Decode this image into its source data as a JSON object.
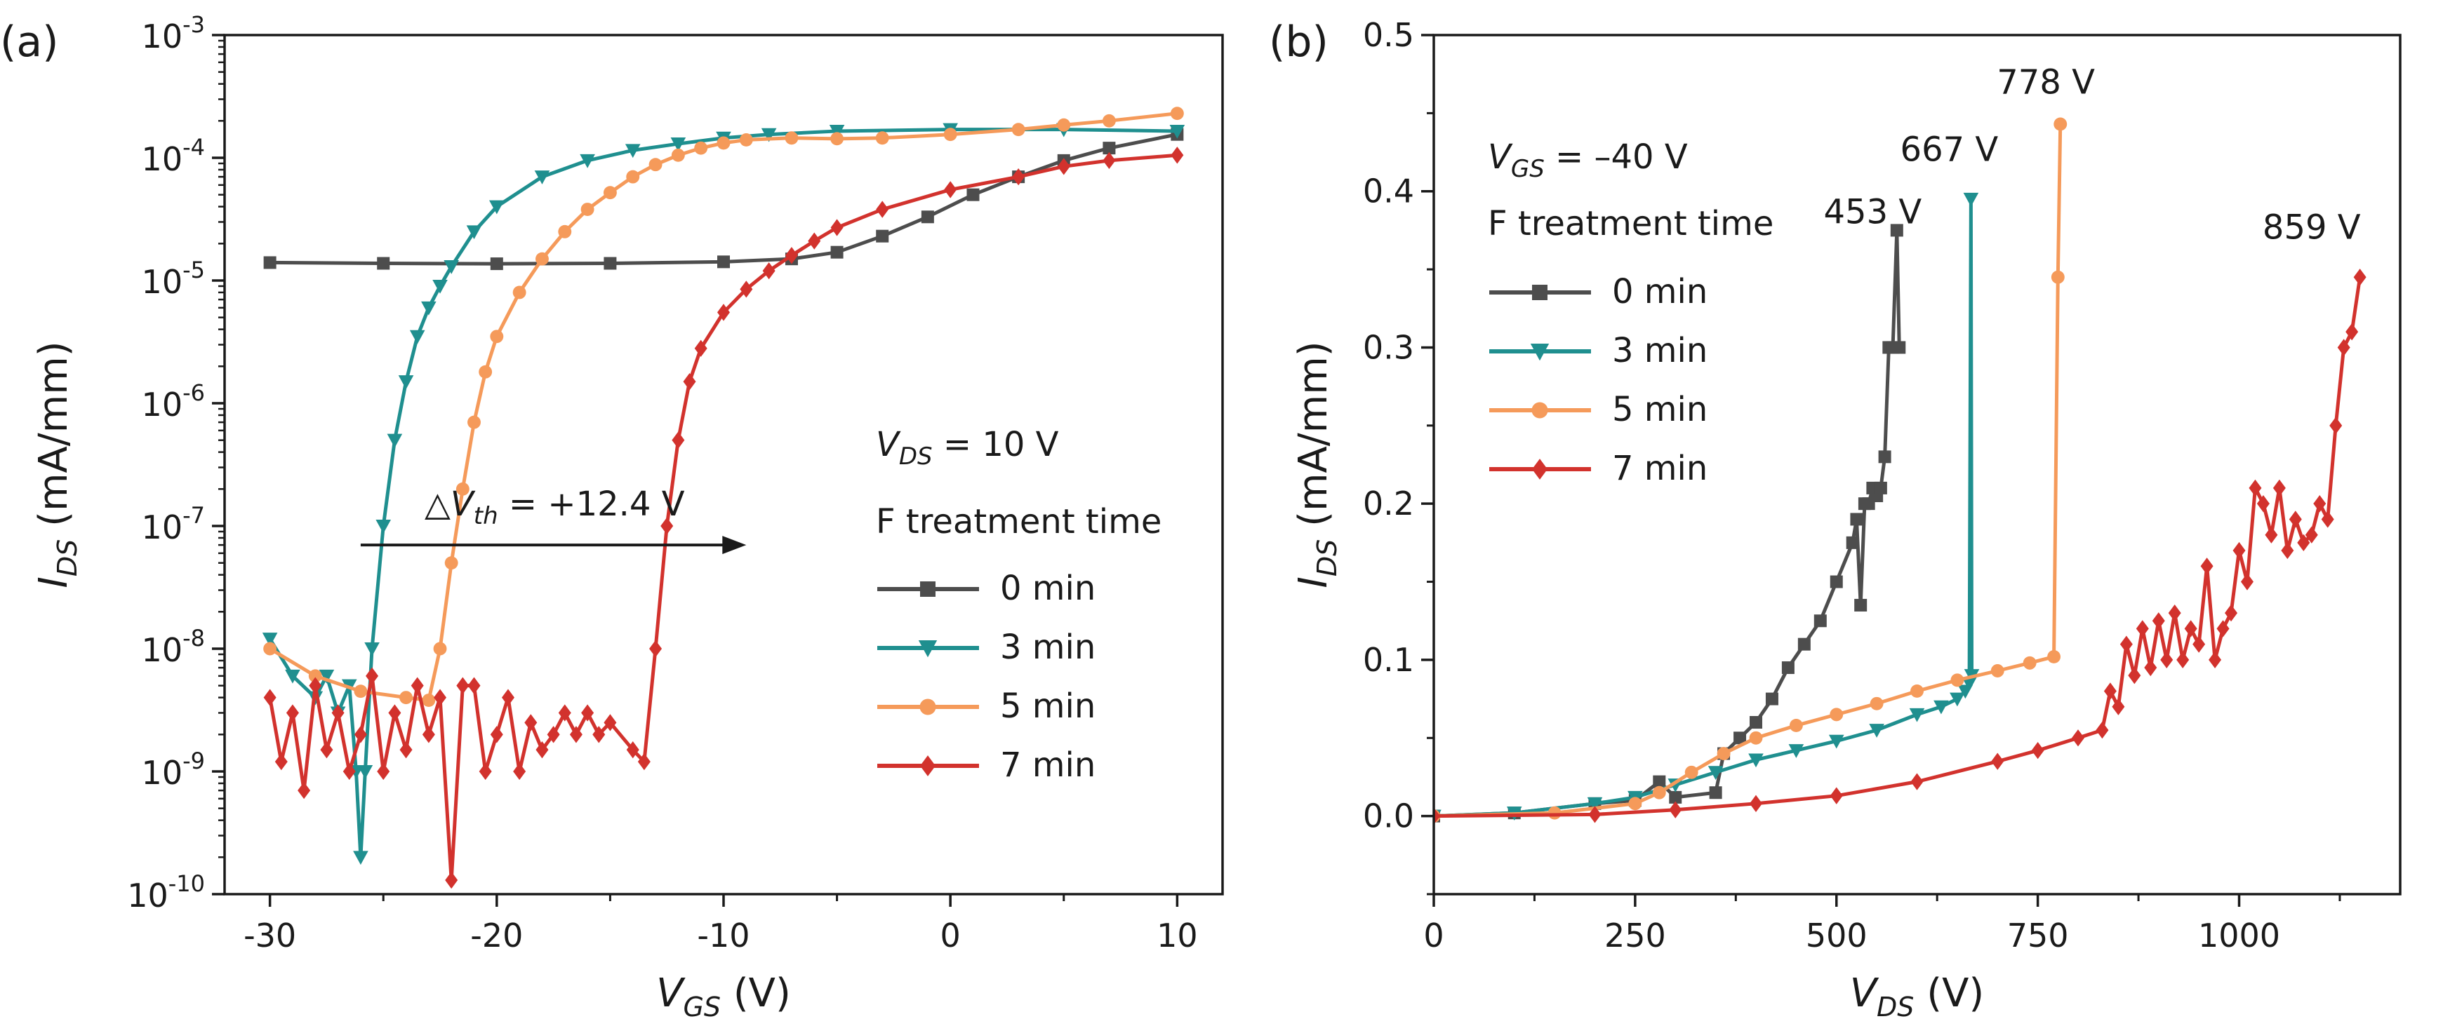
{
  "colors": {
    "0 min": "#4d4d4d",
    "3 min": "#1f8f8f",
    "5 min": "#f59a5a",
    "7 min": "#d2322d",
    "axis": "#1a1a1a"
  },
  "chart_data": [
    {
      "panel": "(a)",
      "type": "line",
      "yscale": "log",
      "xlabel": {
        "main": "V",
        "sub": "GS",
        "unit": " (V)"
      },
      "ylabel": {
        "main": "I",
        "sub": "DS",
        "unit": " (mA/mm)"
      },
      "xlim": [
        -32,
        12
      ],
      "ylim": [
        1e-10,
        0.001
      ],
      "xticks": [
        -30,
        -20,
        -10,
        0,
        10
      ],
      "xtick_labels": [
        "-30",
        "-20",
        "-10",
        "0",
        "10"
      ],
      "yticks": [
        -10,
        -9,
        -8,
        -7,
        -6,
        -5,
        -4,
        -3
      ],
      "ytick_labels": [
        {
          "base": "10",
          "exp": "-10"
        },
        {
          "base": "10",
          "exp": "-9"
        },
        {
          "base": "10",
          "exp": "-8"
        },
        {
          "base": "10",
          "exp": "-7"
        },
        {
          "base": "10",
          "exp": "-6"
        },
        {
          "base": "10",
          "exp": "-5"
        },
        {
          "base": "10",
          "exp": "-4"
        },
        {
          "base": "10",
          "exp": "-3"
        }
      ],
      "condition": {
        "var": "V",
        "sub": "DS",
        "rest": " = 10 V"
      },
      "legend_title": "F treatment time",
      "annotation": {
        "prefix": "△V",
        "sub": "th",
        "rest": " = +12.4 V",
        "from_x": -26,
        "to_x": -9,
        "y": 7e-08
      },
      "series": [
        {
          "name": "0 min",
          "marker": "square",
          "x": [
            -30,
            -25,
            -20,
            -15,
            -10,
            -7,
            -5,
            -3,
            -1,
            1,
            3,
            5,
            7,
            10
          ],
          "y": [
            1.4e-05,
            1.38e-05,
            1.37e-05,
            1.38e-05,
            1.42e-05,
            1.5e-05,
            1.7e-05,
            2.3e-05,
            3.3e-05,
            5e-05,
            7e-05,
            9.5e-05,
            0.00012,
            0.000155
          ]
        },
        {
          "name": "3 min",
          "marker": "triangle-down",
          "x": [
            -30,
            -29,
            -28,
            -27.5,
            -27,
            -26.5,
            -26.2,
            -26,
            -25.8,
            -25.5,
            -25,
            -24.5,
            -24,
            -23.5,
            -23,
            -22.5,
            -22,
            -21,
            -20,
            -18,
            -16,
            -14,
            -12,
            -10,
            -8,
            -5,
            0,
            5,
            10
          ],
          "y": [
            1.2e-08,
            6e-09,
            4e-09,
            6e-09,
            3e-09,
            5e-09,
            1e-09,
            2e-10,
            1e-09,
            1e-08,
            1e-07,
            5e-07,
            1.5e-06,
            3.5e-06,
            6e-06,
            9e-06,
            1.3e-05,
            2.5e-05,
            4e-05,
            7e-05,
            9.5e-05,
            0.000115,
            0.00013,
            0.000145,
            0.000155,
            0.000165,
            0.00017,
            0.00017,
            0.000165
          ]
        },
        {
          "name": "5 min",
          "marker": "circle",
          "x": [
            -30,
            -28,
            -26,
            -24,
            -23,
            -22.5,
            -22,
            -21.5,
            -21,
            -20.5,
            -20,
            -19,
            -18,
            -17,
            -16,
            -15,
            -14,
            -13,
            -12,
            -11,
            -10,
            -9,
            -7,
            -5,
            -3,
            0,
            3,
            5,
            7,
            10
          ],
          "y": [
            1e-08,
            6e-09,
            4.5e-09,
            4e-09,
            3.8e-09,
            1e-08,
            5e-08,
            2e-07,
            7e-07,
            1.8e-06,
            3.5e-06,
            8e-06,
            1.5e-05,
            2.5e-05,
            3.8e-05,
            5.2e-05,
            7e-05,
            8.8e-05,
            0.000105,
            0.00012,
            0.000132,
            0.00014,
            0.000145,
            0.000143,
            0.000145,
            0.000155,
            0.00017,
            0.000185,
            0.0002,
            0.00023
          ]
        },
        {
          "name": "7 min",
          "marker": "diamond",
          "x": [
            -30,
            -29.5,
            -29,
            -28.5,
            -28,
            -27.5,
            -27,
            -26.5,
            -26,
            -25.5,
            -25,
            -24.5,
            -24,
            -23.5,
            -23,
            -22.5,
            -22,
            -21.5,
            -21,
            -20.5,
            -20,
            -19.5,
            -19,
            -18.5,
            -18,
            -17.5,
            -17,
            -16.5,
            -16,
            -15.5,
            -15,
            -14,
            -13.5,
            -13,
            -12.5,
            -12,
            -11.5,
            -11,
            -10,
            -9,
            -8,
            -7,
            -6,
            -5,
            -3,
            0,
            3,
            5,
            7,
            10
          ],
          "y": [
            4e-09,
            1.2e-09,
            3e-09,
            7e-10,
            5e-09,
            1.5e-09,
            3e-09,
            1e-09,
            2e-09,
            6e-09,
            1e-09,
            3e-09,
            1.5e-09,
            5e-09,
            2e-09,
            4e-09,
            1.3e-10,
            5e-09,
            5e-09,
            1e-09,
            2e-09,
            4e-09,
            1e-09,
            2.5e-09,
            1.5e-09,
            2e-09,
            3e-09,
            2e-09,
            3e-09,
            2e-09,
            2.5e-09,
            1.5e-09,
            1.2e-09,
            1e-08,
            1e-07,
            5e-07,
            1.5e-06,
            2.8e-06,
            5.5e-06,
            8.5e-06,
            1.2e-05,
            1.6e-05,
            2.1e-05,
            2.7e-05,
            3.8e-05,
            5.5e-05,
            7e-05,
            8.5e-05,
            9.5e-05,
            0.000105
          ]
        }
      ]
    },
    {
      "panel": "(b)",
      "type": "line",
      "yscale": "linear",
      "xlabel": {
        "main": "V",
        "sub": "DS",
        "unit": " (V)"
      },
      "ylabel": {
        "main": "I",
        "sub": "DS",
        "unit": " (mA/mm)"
      },
      "xlim": [
        0,
        1200
      ],
      "ylim": [
        -0.05,
        0.5
      ],
      "xticks": [
        0,
        250,
        500,
        750,
        1000
      ],
      "xtick_labels": [
        "0",
        "250",
        "500",
        "750",
        "1000"
      ],
      "yticks": [
        0.0,
        0.1,
        0.2,
        0.3,
        0.4,
        0.5
      ],
      "ytick_labels": [
        "0.0",
        "0.1",
        "0.2",
        "0.3",
        "0.4",
        "0.5"
      ],
      "condition": {
        "var": "V",
        "sub": "GS",
        "rest": " = –40 V"
      },
      "legend_title": "F treatment time",
      "breakdown_labels": [
        {
          "text": "453 V",
          "x": 545,
          "y": 0.375
        },
        {
          "text": "667 V",
          "x": 640,
          "y": 0.415
        },
        {
          "text": "778 V",
          "x": 760,
          "y": 0.458
        },
        {
          "text": "859 V",
          "x": 1090,
          "y": 0.365
        }
      ],
      "series": [
        {
          "name": "0 min",
          "marker": "square",
          "x": [
            0,
            100,
            200,
            250,
            280,
            300,
            350,
            360,
            380,
            400,
            420,
            440,
            460,
            480,
            500,
            520,
            525,
            530,
            535,
            540,
            545,
            550,
            555,
            560,
            565,
            570,
            575,
            578
          ],
          "y": [
            0,
            0.002,
            0.008,
            0.01,
            0.022,
            0.012,
            0.015,
            0.04,
            0.05,
            0.06,
            0.075,
            0.095,
            0.11,
            0.125,
            0.15,
            0.175,
            0.19,
            0.135,
            0.2,
            0.2,
            0.21,
            0.205,
            0.21,
            0.23,
            0.3,
            0.3,
            0.375,
            0.3
          ]
        },
        {
          "name": "3 min",
          "marker": "triangle-down",
          "x": [
            0,
            100,
            200,
            250,
            300,
            350,
            400,
            450,
            500,
            550,
            600,
            630,
            650,
            660,
            665,
            667,
            668
          ],
          "y": [
            0,
            0.002,
            0.008,
            0.012,
            0.02,
            0.028,
            0.036,
            0.042,
            0.048,
            0.055,
            0.065,
            0.07,
            0.075,
            0.08,
            0.085,
            0.395,
            0.09
          ]
        },
        {
          "name": "5 min",
          "marker": "circle",
          "x": [
            0,
            150,
            250,
            280,
            320,
            360,
            400,
            450,
            500,
            550,
            600,
            650,
            700,
            740,
            770,
            775,
            778
          ],
          "y": [
            0,
            0.002,
            0.008,
            0.015,
            0.028,
            0.04,
            0.05,
            0.058,
            0.065,
            0.072,
            0.08,
            0.087,
            0.093,
            0.098,
            0.102,
            0.345,
            0.443
          ]
        },
        {
          "name": "7 min",
          "marker": "diamond",
          "x": [
            0,
            200,
            300,
            400,
            500,
            600,
            700,
            750,
            800,
            830,
            840,
            850,
            860,
            870,
            880,
            890,
            900,
            910,
            920,
            930,
            940,
            950,
            960,
            970,
            980,
            990,
            1000,
            1010,
            1020,
            1030,
            1040,
            1050,
            1060,
            1070,
            1080,
            1090,
            1100,
            1110,
            1120,
            1130,
            1140,
            1150
          ],
          "y": [
            0,
            0.001,
            0.004,
            0.008,
            0.013,
            0.022,
            0.035,
            0.042,
            0.05,
            0.055,
            0.08,
            0.07,
            0.11,
            0.09,
            0.12,
            0.095,
            0.125,
            0.1,
            0.13,
            0.1,
            0.12,
            0.11,
            0.16,
            0.1,
            0.12,
            0.13,
            0.17,
            0.15,
            0.21,
            0.2,
            0.18,
            0.21,
            0.17,
            0.19,
            0.175,
            0.18,
            0.2,
            0.19,
            0.25,
            0.3,
            0.31,
            0.345
          ]
        }
      ]
    }
  ]
}
